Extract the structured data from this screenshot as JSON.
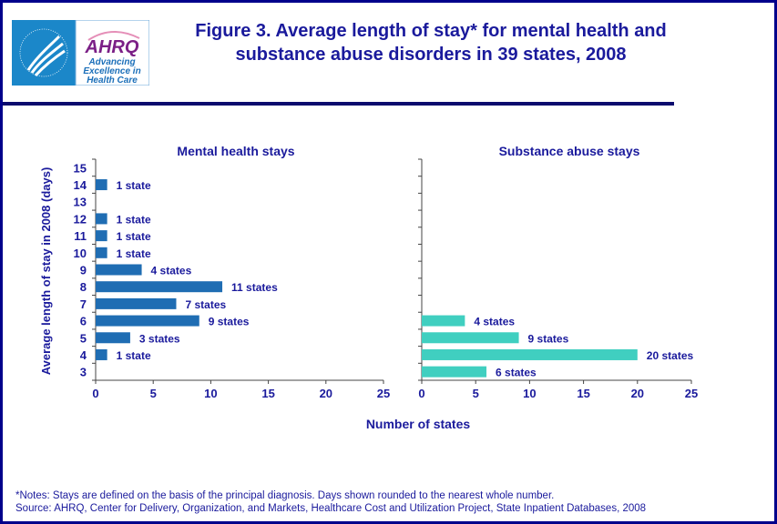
{
  "header": {
    "title_line1": "Figure 3. Average length of stay* for mental health and",
    "title_line2": "substance abuse disorders in 39 states, 2008",
    "logo_text": [
      "AHRQ",
      "Advancing",
      "Excellence in",
      "Health Care"
    ]
  },
  "chart_data": [
    {
      "type": "bar",
      "orientation": "horizontal",
      "title": "Mental health stays",
      "ylabel": "Average length of stay in 2008 (days)",
      "xlabel": "Number of states",
      "categories": [
        3,
        4,
        5,
        6,
        7,
        8,
        9,
        10,
        11,
        12,
        13,
        14,
        15
      ],
      "values": [
        0,
        1,
        3,
        9,
        7,
        11,
        4,
        1,
        1,
        1,
        0,
        1,
        0
      ],
      "data_labels": [
        "",
        "1 state",
        "3 states",
        "9 states",
        "7 states",
        "11 states",
        "4 states",
        "1 state",
        "1 state",
        "1 state",
        "",
        "1 state",
        ""
      ],
      "xlim": [
        0,
        25
      ],
      "xticks": [
        0,
        5,
        10,
        15,
        20,
        25
      ],
      "color": "#1f6db3"
    },
    {
      "type": "bar",
      "orientation": "horizontal",
      "title": "Substance abuse stays",
      "categories": [
        3,
        4,
        5,
        6,
        7,
        8,
        9,
        10,
        11,
        12,
        13,
        14,
        15
      ],
      "values": [
        6,
        20,
        9,
        4,
        0,
        0,
        0,
        0,
        0,
        0,
        0,
        0,
        0
      ],
      "data_labels": [
        "6 states",
        "20 states",
        "9 states",
        "4  states",
        "",
        "",
        "",
        "",
        "",
        "",
        "",
        "",
        ""
      ],
      "xlim": [
        0,
        25
      ],
      "xticks": [
        0,
        5,
        10,
        15,
        20,
        25
      ],
      "color": "#40cfc0"
    }
  ],
  "notes": {
    "note": "*Notes: Stays are defined on the basis of the principal diagnosis. Days shown rounded to the nearest whole number.",
    "source": "Source:  AHRQ, Center for Delivery, Organization, and Markets, Healthcare Cost and Utilization Project, State Inpatient Databases, 2008"
  }
}
